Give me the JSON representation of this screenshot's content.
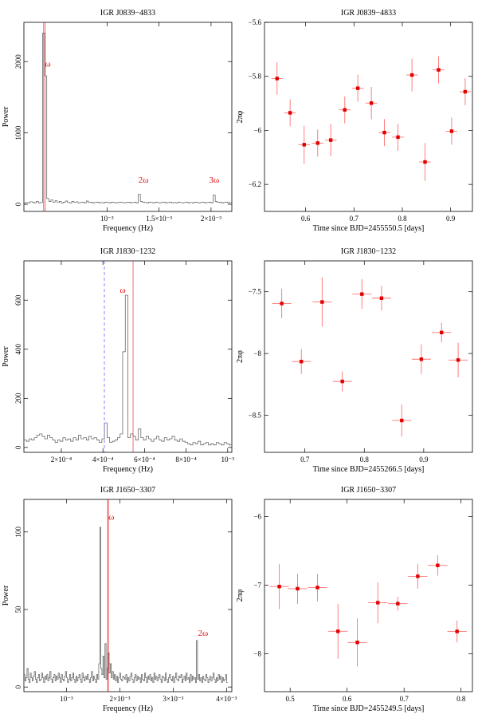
{
  "chart_data": [
    {
      "type": "line",
      "title": "IGR J0839−4833",
      "xlabel": "Frequency (Hz)",
      "ylabel": "Power",
      "xlim": [
        0.0002,
        0.0022
      ],
      "ylim": [
        -100,
        2550
      ],
      "xticks": [
        {
          "v": 0.001,
          "label": "10⁻³"
        },
        {
          "v": 0.0015,
          "label": "1.5×10⁻³"
        },
        {
          "v": 0.002,
          "label": "2×10⁻³"
        }
      ],
      "yticks": [
        {
          "v": 0,
          "label": "0"
        },
        {
          "v": 1000,
          "label": "1000"
        },
        {
          "v": 2000,
          "label": "2000"
        }
      ],
      "step": {
        "x0": 0.0002,
        "dx": 2e-05,
        "values": [
          15,
          25,
          20,
          35,
          30,
          20,
          40,
          20,
          25,
          2400,
          1800,
          80,
          40,
          60,
          30,
          50,
          25,
          40,
          20,
          30,
          45,
          25,
          20,
          40,
          30,
          35,
          20,
          25,
          30,
          20,
          45,
          25,
          30,
          20,
          25,
          30,
          20,
          25,
          20,
          30,
          25,
          20,
          30,
          25,
          20,
          25,
          30,
          25,
          20,
          25,
          30,
          20,
          25,
          30,
          20,
          140,
          40,
          30,
          25,
          20,
          30,
          25,
          20,
          30,
          25,
          20,
          25,
          30,
          20,
          25,
          30,
          20,
          25,
          20,
          30,
          25,
          20,
          25,
          30,
          20,
          25,
          20,
          30,
          25,
          20,
          25,
          30,
          20,
          25,
          30,
          20,
          130,
          40,
          25,
          30,
          20,
          25,
          30,
          20,
          25
        ]
      },
      "red_lines": [
        0.00039,
        0.000405
      ],
      "annotations": [
        {
          "label": "ω",
          "x": 0.00043,
          "y": 1930
        },
        {
          "label": "2ω",
          "x": 0.00135,
          "y": 300
        },
        {
          "label": "3ω",
          "x": 0.00203,
          "y": 300
        }
      ]
    },
    {
      "type": "scatter",
      "title": "IGR J0839−4833",
      "xlabel": "Time since BJD=2455550.5 [days]",
      "ylabel": "2πφ",
      "xlim": [
        0.515,
        0.945
      ],
      "ylim": [
        -6.3,
        -5.6
      ],
      "xticks": [
        {
          "v": 0.6,
          "label": "0.6"
        },
        {
          "v": 0.7,
          "label": "0.7"
        },
        {
          "v": 0.8,
          "label": "0.8"
        },
        {
          "v": 0.9,
          "label": "0.9"
        }
      ],
      "yticks": [
        {
          "v": -5.6,
          "label": "−5.6"
        },
        {
          "v": -5.8,
          "label": "−5.8"
        },
        {
          "v": -6,
          "label": "−6"
        },
        {
          "v": -6.2,
          "label": "−6.2"
        }
      ],
      "points": [
        {
          "x": 0.541,
          "y": -5.808,
          "xerr": 0.012,
          "yerr": 0.06
        },
        {
          "x": 0.568,
          "y": -5.935,
          "xerr": 0.012,
          "yerr": 0.05
        },
        {
          "x": 0.597,
          "y": -6.053,
          "xerr": 0.012,
          "yerr": 0.07
        },
        {
          "x": 0.625,
          "y": -6.047,
          "xerr": 0.012,
          "yerr": 0.05
        },
        {
          "x": 0.652,
          "y": -6.036,
          "xerr": 0.012,
          "yerr": 0.06
        },
        {
          "x": 0.681,
          "y": -5.924,
          "xerr": 0.012,
          "yerr": 0.05
        },
        {
          "x": 0.708,
          "y": -5.844,
          "xerr": 0.012,
          "yerr": 0.05
        },
        {
          "x": 0.736,
          "y": -5.899,
          "xerr": 0.012,
          "yerr": 0.06
        },
        {
          "x": 0.763,
          "y": -6.008,
          "xerr": 0.012,
          "yerr": 0.05
        },
        {
          "x": 0.791,
          "y": -6.025,
          "xerr": 0.012,
          "yerr": 0.05
        },
        {
          "x": 0.82,
          "y": -5.795,
          "xerr": 0.012,
          "yerr": 0.06
        },
        {
          "x": 0.847,
          "y": -6.117,
          "xerr": 0.012,
          "yerr": 0.07
        },
        {
          "x": 0.875,
          "y": -5.776,
          "xerr": 0.012,
          "yerr": 0.05
        },
        {
          "x": 0.902,
          "y": -6.003,
          "xerr": 0.012,
          "yerr": 0.05
        },
        {
          "x": 0.93,
          "y": -5.857,
          "xerr": 0.012,
          "yerr": 0.05
        }
      ]
    },
    {
      "type": "line",
      "title": "IGR J1830−1232",
      "xlabel": "Frequency (Hz)",
      "ylabel": "Power",
      "xlim": [
        2e-05,
        0.00102
      ],
      "ylim": [
        -20,
        760
      ],
      "xticks": [
        {
          "v": 0.0002,
          "label": "2×10⁻⁴"
        },
        {
          "v": 0.0004,
          "label": "4×10⁻⁴"
        },
        {
          "v": 0.0006,
          "label": "6×10⁻⁴"
        },
        {
          "v": 0.0008,
          "label": "8×10⁻⁴"
        },
        {
          "v": 0.001,
          "label": "10⁻³"
        }
      ],
      "yticks": [
        {
          "v": 0,
          "label": "0"
        },
        {
          "v": 200,
          "label": "200"
        },
        {
          "v": 400,
          "label": "400"
        },
        {
          "v": 600,
          "label": "600"
        }
      ],
      "step": {
        "x0": 2e-05,
        "dx": 1.25e-05,
        "values": [
          30,
          25,
          35,
          30,
          40,
          50,
          55,
          45,
          35,
          50,
          40,
          30,
          20,
          30,
          25,
          40,
          30,
          35,
          25,
          40,
          30,
          50,
          35,
          40,
          30,
          45,
          35,
          40,
          30,
          20,
          35,
          100,
          40,
          20,
          25,
          30,
          40,
          55,
          390,
          620,
          40,
          55,
          45,
          30,
          75,
          40,
          30,
          45,
          35,
          25,
          35,
          45,
          30,
          25,
          40,
          30,
          35,
          45,
          30,
          25,
          35,
          25,
          20,
          15,
          10,
          20,
          15,
          25,
          10,
          15,
          20,
          10,
          15,
          10,
          20,
          15,
          10,
          20,
          15,
          10,
          5
        ]
      },
      "red_lines": [
        0.000545
      ],
      "blue_dashed": [
        0.000407
      ],
      "annotations": [
        {
          "label": "ω",
          "x": 0.000495,
          "y": 630
        }
      ]
    },
    {
      "type": "scatter",
      "title": "IGR J1830−1232",
      "xlabel": "Time since BJD=2455266.5 [days]",
      "ylabel": "2πφ",
      "xlim": [
        0.632,
        0.982
      ],
      "ylim": [
        -8.8,
        -7.25
      ],
      "xticks": [
        {
          "v": 0.7,
          "label": "0.7"
        },
        {
          "v": 0.8,
          "label": "0.8"
        },
        {
          "v": 0.9,
          "label": "0.9"
        }
      ],
      "yticks": [
        {
          "v": -7.5,
          "label": "−7.5"
        },
        {
          "v": -8,
          "label": "−8"
        },
        {
          "v": -8.5,
          "label": "−8.5"
        }
      ],
      "points": [
        {
          "x": 0.661,
          "y": -7.595,
          "xerr": 0.016,
          "yerr": 0.12
        },
        {
          "x": 0.694,
          "y": -8.065,
          "xerr": 0.016,
          "yerr": 0.1
        },
        {
          "x": 0.729,
          "y": -7.583,
          "xerr": 0.016,
          "yerr": 0.2
        },
        {
          "x": 0.763,
          "y": -8.226,
          "xerr": 0.016,
          "yerr": 0.08
        },
        {
          "x": 0.796,
          "y": -7.519,
          "xerr": 0.016,
          "yerr": 0.12
        },
        {
          "x": 0.829,
          "y": -7.552,
          "xerr": 0.016,
          "yerr": 0.1
        },
        {
          "x": 0.863,
          "y": -8.542,
          "xerr": 0.016,
          "yerr": 0.13
        },
        {
          "x": 0.896,
          "y": -8.046,
          "xerr": 0.016,
          "yerr": 0.12
        },
        {
          "x": 0.93,
          "y": -7.83,
          "xerr": 0.016,
          "yerr": 0.08
        },
        {
          "x": 0.958,
          "y": -8.053,
          "xerr": 0.016,
          "yerr": 0.14
        }
      ]
    },
    {
      "type": "line",
      "title": "IGR J1650−3307",
      "xlabel": "Frequency (Hz)",
      "ylabel": "Power",
      "xlim": [
        0.0002,
        0.0041
      ],
      "ylim": [
        -3,
        121
      ],
      "xticks": [
        {
          "v": 0.001,
          "label": "10⁻³"
        },
        {
          "v": 0.002,
          "label": "2×10⁻³"
        },
        {
          "v": 0.003,
          "label": "3×10⁻³"
        },
        {
          "v": 0.004,
          "label": "4×10⁻³"
        }
      ],
      "yticks": [
        {
          "v": 0,
          "label": "0"
        },
        {
          "v": 50,
          "label": "50"
        },
        {
          "v": 100,
          "label": "100"
        }
      ],
      "step": {
        "x0": 0.0002,
        "dx": 1.95e-05,
        "values": [
          8,
          4,
          6,
          12,
          5,
          3,
          9,
          6,
          4,
          7,
          10,
          5,
          3,
          6,
          8,
          4,
          5,
          9,
          6,
          3,
          7,
          5,
          8,
          4,
          6,
          10,
          5,
          3,
          6,
          8,
          4,
          7,
          5,
          9,
          6,
          3,
          8,
          5,
          4,
          7,
          10,
          6,
          3,
          5,
          8,
          4,
          6,
          9,
          5,
          3,
          7,
          4,
          6,
          8,
          5,
          3,
          9,
          6,
          4,
          7,
          5,
          8,
          5,
          3,
          6,
          10,
          4,
          7,
          5,
          3,
          8,
          5,
          15,
          103,
          12,
          8,
          20,
          6,
          28,
          5,
          12,
          22,
          9,
          15,
          6,
          10,
          5,
          8,
          4,
          7,
          3,
          6,
          9,
          5,
          4,
          7,
          6,
          5,
          8,
          3,
          6,
          4,
          7,
          9,
          5,
          3,
          6,
          8,
          4,
          7,
          5,
          6,
          3,
          8,
          5,
          4,
          9,
          6,
          3,
          7,
          5,
          8,
          4,
          6,
          3,
          9,
          5,
          7,
          4,
          6,
          8,
          5,
          3,
          7,
          6,
          4,
          9,
          5,
          3,
          6,
          8,
          5,
          4,
          7,
          3,
          6,
          9,
          5,
          4,
          7,
          6,
          8,
          3,
          5,
          7,
          4,
          9,
          5,
          6,
          3,
          8,
          4,
          7,
          5,
          6,
          3,
          30,
          5,
          8,
          4,
          6,
          3,
          7,
          5,
          4,
          8,
          6,
          3,
          5,
          7,
          4,
          6,
          9,
          5,
          3,
          6,
          4,
          8,
          5,
          7,
          3,
          6,
          4,
          5,
          8,
          3
        ]
      },
      "red_lines": [
        0.00177,
        0.001785
      ],
      "annotations": [
        {
          "label": "ω",
          "x": 0.00184,
          "y": 108
        },
        {
          "label": "2ω",
          "x": 0.00356,
          "y": 33
        }
      ]
    },
    {
      "type": "scatter",
      "title": "IGR J1650−3307",
      "xlabel": "Time since BJD=2455249.5 [days]",
      "ylabel": "2πφ",
      "xlim": [
        0.455,
        0.82
      ],
      "ylim": [
        -8.55,
        -5.75
      ],
      "xticks": [
        {
          "v": 0.5,
          "label": "0.5"
        },
        {
          "v": 0.6,
          "label": "0.6"
        },
        {
          "v": 0.7,
          "label": "0.7"
        },
        {
          "v": 0.8,
          "label": "0.8"
        }
      ],
      "yticks": [
        {
          "v": -6,
          "label": "−6"
        },
        {
          "v": -7,
          "label": "−7"
        },
        {
          "v": -8,
          "label": "−8"
        }
      ],
      "points": [
        {
          "x": 0.481,
          "y": -7.019,
          "xerr": 0.017,
          "yerr": 0.33
        },
        {
          "x": 0.513,
          "y": -7.05,
          "xerr": 0.017,
          "yerr": 0.22
        },
        {
          "x": 0.548,
          "y": -7.033,
          "xerr": 0.017,
          "yerr": 0.2
        },
        {
          "x": 0.584,
          "y": -7.671,
          "xerr": 0.017,
          "yerr": 0.4
        },
        {
          "x": 0.618,
          "y": -7.833,
          "xerr": 0.017,
          "yerr": 0.35
        },
        {
          "x": 0.654,
          "y": -7.254,
          "xerr": 0.017,
          "yerr": 0.3
        },
        {
          "x": 0.689,
          "y": -7.268,
          "xerr": 0.017,
          "yerr": 0.1
        },
        {
          "x": 0.724,
          "y": -6.87,
          "xerr": 0.017,
          "yerr": 0.18
        },
        {
          "x": 0.759,
          "y": -6.711,
          "xerr": 0.017,
          "yerr": 0.15
        },
        {
          "x": 0.793,
          "y": -7.673,
          "xerr": 0.017,
          "yerr": 0.16
        }
      ]
    }
  ]
}
